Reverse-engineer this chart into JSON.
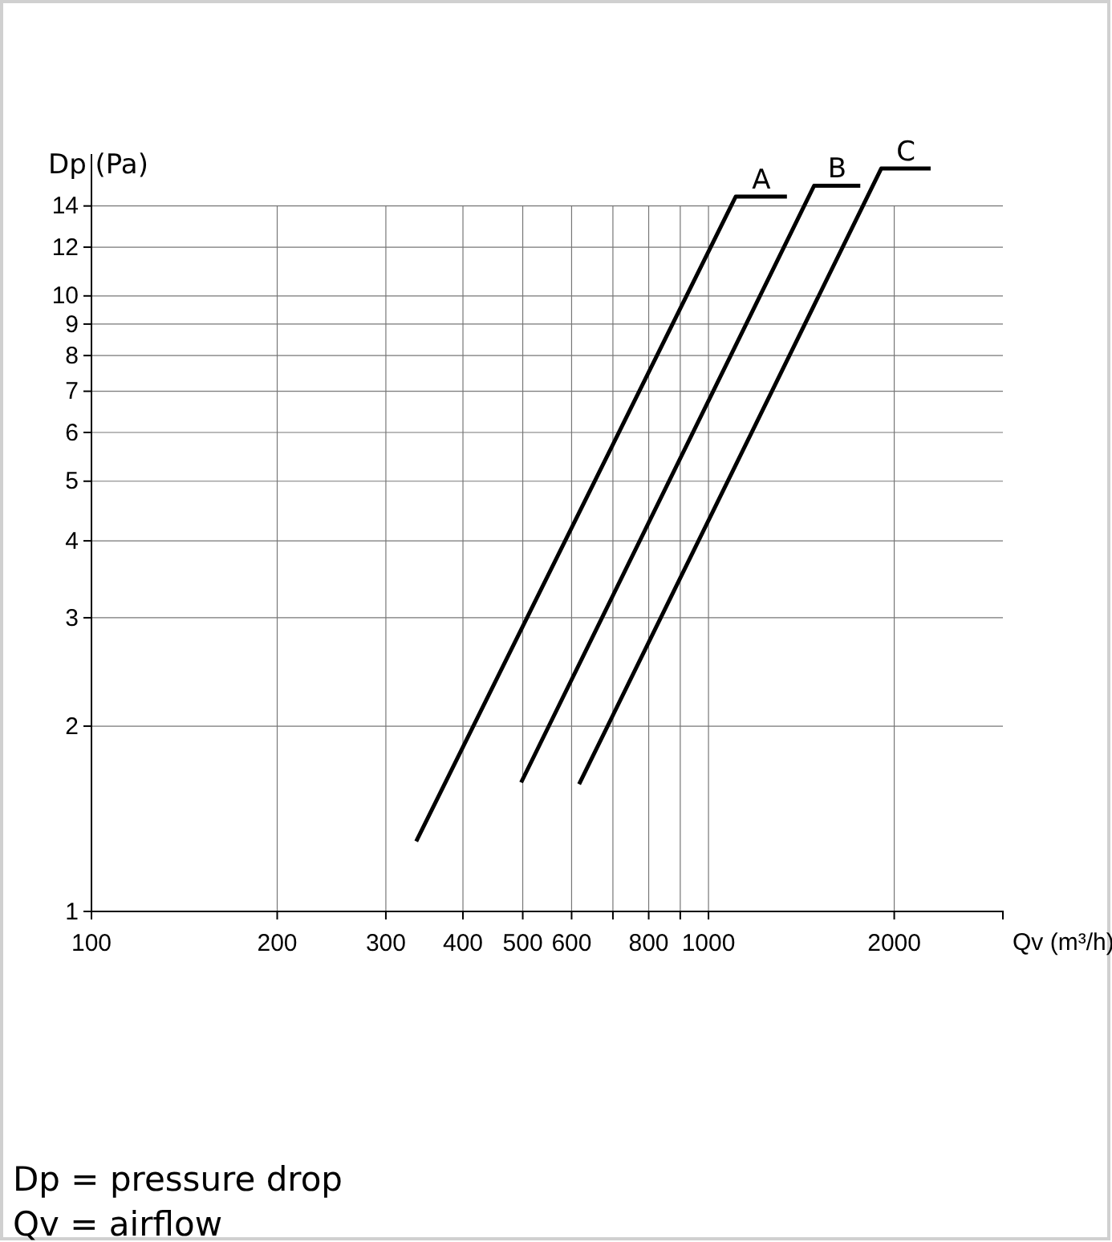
{
  "chart_data": {
    "type": "line",
    "xlabel": "Qv (m³/h)",
    "ylabel": "Dp (Pa)",
    "log": "xy",
    "grid": true,
    "marker": "none",
    "line_style": "solid",
    "xlim": [
      100,
      3000
    ],
    "ylim": [
      1,
      17
    ],
    "xticks": [
      100,
      200,
      300,
      400,
      500,
      600,
      {
        "value": 700,
        "label": null
      },
      800,
      {
        "value": 900,
        "label": null
      },
      1000,
      2000
    ],
    "yticks": [
      1,
      2,
      3,
      4,
      5,
      6,
      7,
      8,
      9,
      10,
      12,
      14
    ],
    "series": [
      {
        "name": "A",
        "color": "#000000",
        "x": [
          336,
          1107,
          1340
        ],
        "values": [
          1.3,
          14.5,
          14.5
        ]
      },
      {
        "name": "B",
        "color": "#000000",
        "x": [
          497,
          1483,
          1762
        ],
        "values": [
          1.62,
          15.1,
          15.1
        ]
      },
      {
        "name": "C",
        "color": "#000000",
        "x": [
          617,
          1905,
          2291
        ],
        "values": [
          1.61,
          16.1,
          16.1
        ]
      }
    ],
    "annotations": [
      "Dp = pressure drop",
      "Qv = airflow"
    ]
  }
}
